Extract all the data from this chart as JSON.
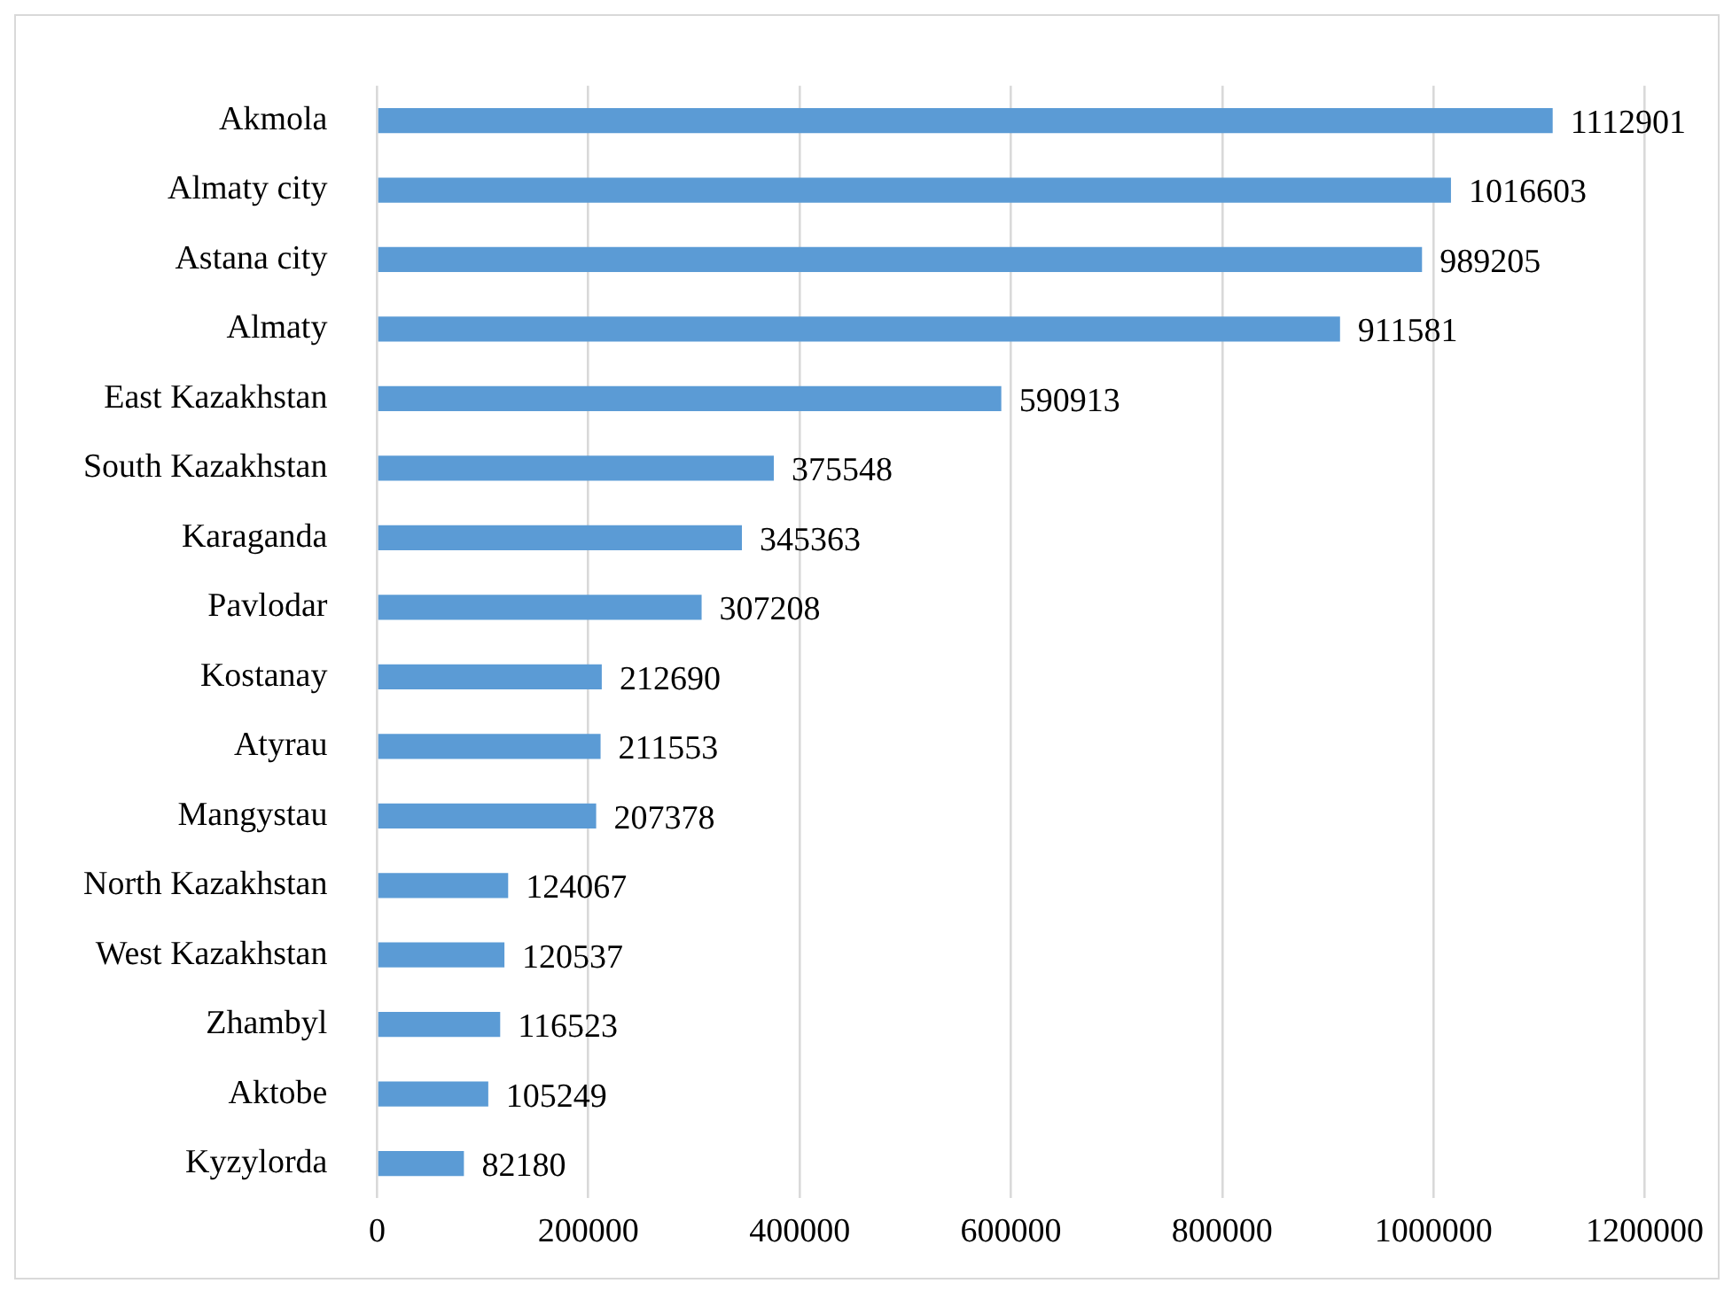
{
  "chart_data": {
    "type": "bar",
    "orientation": "horizontal",
    "categories": [
      "Akmola",
      "Almaty city",
      "Astana city",
      "Almaty",
      "East Kazakhstan",
      "South Kazakhstan",
      "Karaganda",
      "Pavlodar",
      "Kostanay",
      "Atyrau",
      "Mangystau",
      "North Kazakhstan",
      "West Kazakhstan",
      "Zhambyl",
      "Aktobe",
      "Kyzylorda"
    ],
    "values": [
      1112901,
      1016603,
      989205,
      911581,
      590913,
      375548,
      345363,
      307208,
      212690,
      211553,
      207378,
      124067,
      120537,
      116523,
      105249,
      82180
    ],
    "color": "#5b9bd5",
    "xlim": [
      0,
      1200000
    ],
    "xticks": [
      0,
      200000,
      400000,
      600000,
      800000,
      1000000,
      1200000
    ],
    "grid": "x",
    "data_labels": true,
    "legend": false
  }
}
